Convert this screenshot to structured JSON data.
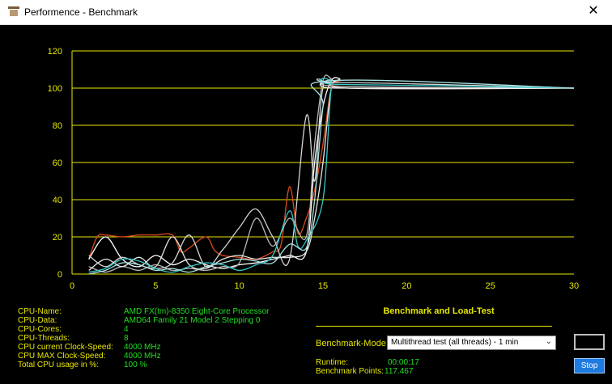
{
  "window": {
    "title": "Performence - Benchmark",
    "close_icon": "✕"
  },
  "chart_data": {
    "type": "line",
    "xlim": [
      0,
      30
    ],
    "ylim": [
      0,
      120
    ],
    "x_ticks": [
      0,
      5,
      10,
      15,
      20,
      25,
      30
    ],
    "y_ticks": [
      0,
      20,
      40,
      60,
      80,
      100,
      120
    ],
    "grid": "horizontal",
    "colors": {
      "background": "#000000",
      "axis": "#e8e800",
      "grid": "#e8e800",
      "tick_label": "#e8e800"
    },
    "series": [
      {
        "color": "#d84a1a",
        "points": [
          [
            1,
            8
          ],
          [
            1.5,
            20
          ],
          [
            2,
            21
          ],
          [
            3,
            20
          ],
          [
            4,
            21
          ],
          [
            5,
            21
          ],
          [
            6,
            21
          ],
          [
            6.5,
            12
          ],
          [
            7,
            14
          ],
          [
            8,
            20
          ],
          [
            8.5,
            13
          ],
          [
            9,
            10
          ],
          [
            10,
            9
          ],
          [
            11,
            8
          ],
          [
            12,
            12
          ],
          [
            12.5,
            16
          ],
          [
            13,
            47
          ],
          [
            13.5,
            22
          ],
          [
            14,
            30
          ],
          [
            14.5,
            45
          ],
          [
            15,
            70
          ],
          [
            15.5,
            100
          ],
          [
            16,
            104
          ],
          [
            16.5,
            100
          ],
          [
            30,
            100
          ]
        ]
      },
      {
        "color": "#ffffff",
        "points": [
          [
            1,
            8
          ],
          [
            2,
            20
          ],
          [
            3,
            8
          ],
          [
            4,
            4
          ],
          [
            5,
            10
          ],
          [
            6,
            5
          ],
          [
            7,
            8
          ],
          [
            8,
            5
          ],
          [
            9,
            3
          ],
          [
            10,
            5
          ],
          [
            11,
            6
          ],
          [
            12,
            8
          ],
          [
            13,
            10
          ],
          [
            14,
            12
          ],
          [
            14.5,
            60
          ],
          [
            15,
            90
          ],
          [
            15.5,
            104
          ],
          [
            16,
            105
          ],
          [
            16.5,
            100
          ],
          [
            30,
            100
          ]
        ]
      },
      {
        "color": "#d4d4d4",
        "points": [
          [
            1,
            10
          ],
          [
            2,
            4
          ],
          [
            3,
            9
          ],
          [
            4,
            5
          ],
          [
            5,
            3
          ],
          [
            6,
            6
          ],
          [
            7,
            21
          ],
          [
            8,
            4
          ],
          [
            9,
            13
          ],
          [
            10,
            25
          ],
          [
            11,
            35
          ],
          [
            12,
            20
          ],
          [
            13,
            8
          ],
          [
            14,
            85
          ],
          [
            14.5,
            50
          ],
          [
            15,
            100
          ],
          [
            16,
            103
          ],
          [
            30,
            100
          ]
        ]
      },
      {
        "color": "#b8b8b8",
        "points": [
          [
            1,
            4
          ],
          [
            2,
            1
          ],
          [
            3,
            4
          ],
          [
            4,
            2
          ],
          [
            5,
            5
          ],
          [
            6,
            2
          ],
          [
            7,
            3
          ],
          [
            8,
            2
          ],
          [
            9,
            4
          ],
          [
            10,
            6
          ],
          [
            11,
            30
          ],
          [
            12,
            15
          ],
          [
            13,
            30
          ],
          [
            14,
            20
          ],
          [
            14.5,
            70
          ],
          [
            15,
            104
          ],
          [
            15.5,
            105
          ],
          [
            16,
            101
          ],
          [
            30,
            100
          ]
        ]
      },
      {
        "color": "#e5e5e5",
        "points": [
          [
            1,
            2
          ],
          [
            2,
            8
          ],
          [
            3,
            4
          ],
          [
            4,
            9
          ],
          [
            5,
            4
          ],
          [
            6,
            20
          ],
          [
            7,
            5
          ],
          [
            8,
            3
          ],
          [
            9,
            8
          ],
          [
            10,
            10
          ],
          [
            11,
            8
          ],
          [
            12,
            9
          ],
          [
            13,
            9
          ],
          [
            14,
            12
          ],
          [
            14.5,
            30
          ],
          [
            15,
            60
          ],
          [
            15.5,
            100
          ],
          [
            16,
            100
          ],
          [
            30,
            100
          ]
        ]
      },
      {
        "color": "#35c8c8",
        "points": [
          [
            1,
            1
          ],
          [
            2,
            3
          ],
          [
            3,
            8
          ],
          [
            4,
            7
          ],
          [
            5,
            3
          ],
          [
            6,
            1
          ],
          [
            7,
            4
          ],
          [
            8,
            6
          ],
          [
            9,
            5
          ],
          [
            10,
            2
          ],
          [
            11,
            5
          ],
          [
            12,
            10
          ],
          [
            13,
            34
          ],
          [
            13.5,
            15
          ],
          [
            14,
            18
          ],
          [
            15,
            40
          ],
          [
            15.5,
            100
          ],
          [
            16,
            102
          ],
          [
            30,
            100
          ]
        ]
      },
      {
        "color": "#a7e0e0",
        "points": [
          [
            1,
            0
          ],
          [
            2,
            2
          ],
          [
            3,
            6
          ],
          [
            4,
            5
          ],
          [
            5,
            2
          ],
          [
            6,
            3
          ],
          [
            7,
            1
          ],
          [
            8,
            4
          ],
          [
            9,
            6
          ],
          [
            10,
            8
          ],
          [
            11,
            7
          ],
          [
            12,
            6
          ],
          [
            13,
            16
          ],
          [
            14,
            14
          ],
          [
            14.5,
            40
          ],
          [
            15,
            90
          ],
          [
            15.5,
            104
          ],
          [
            30,
            100
          ]
        ]
      }
    ]
  },
  "info": {
    "labels": [
      "CPU-Name:",
      "CPU-Data:",
      "CPU-Cores:",
      "CPU-Threads:",
      "CPU current Clock-Speed:",
      "CPU MAX Clock-Speed:",
      "Total CPU usage in %:"
    ],
    "values": [
      "AMD FX(tm)-8350 Eight-Core Processor",
      "AMD64 Family 21 Model 2 Stepping 0",
      "4",
      "8",
      "4000 MHz",
      "4000 MHz",
      "100 %"
    ]
  },
  "benchmark": {
    "title": "Benchmark and Load-Test",
    "mode_label": "Benchmark-Mode",
    "mode_value": "Multithread test (all threads) - 1 min",
    "runtime_label": "Runtime:",
    "runtime_value": "00:00:17",
    "points_label": "Benchmark Points:",
    "points_value": "117.467",
    "stop_label": "Stop"
  }
}
